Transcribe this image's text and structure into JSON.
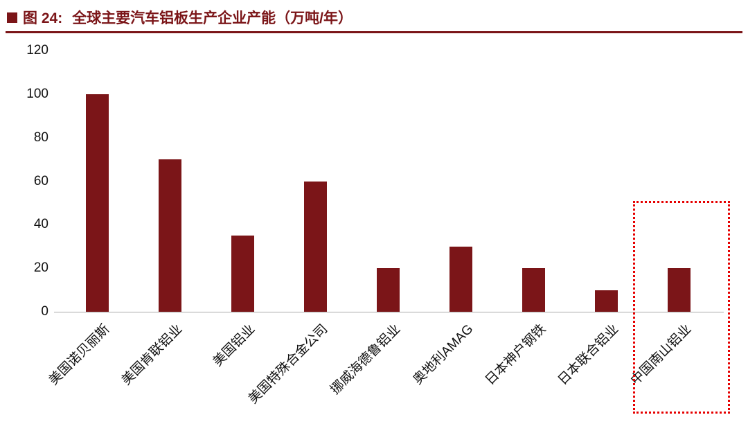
{
  "header": {
    "figure_label": "图 24:",
    "title": "全球主要汽车铝板生产企业产能（万吨/年）"
  },
  "chart_data": {
    "type": "bar",
    "title": "全球主要汽车铝板生产企业产能（万吨/年）",
    "categories": [
      "美国诺贝丽斯",
      "美国肯联铝业",
      "美国铝业",
      "美国特殊合金公司",
      "挪威海德鲁铝业",
      "奥地利AMAG",
      "日本神户钢铁",
      "日本联合铝业",
      "中国南山铝业"
    ],
    "values": [
      100,
      70,
      35,
      60,
      20,
      30,
      20,
      10,
      20
    ],
    "xlabel": "",
    "ylabel": "",
    "ylim": [
      0,
      120
    ],
    "yticks": [
      0,
      20,
      40,
      60,
      80,
      100,
      120
    ],
    "grid": false,
    "legend": false,
    "bar_color": "#7B1518",
    "highlight": {
      "index": 8,
      "color": "#e60000",
      "style": "dotted"
    }
  }
}
